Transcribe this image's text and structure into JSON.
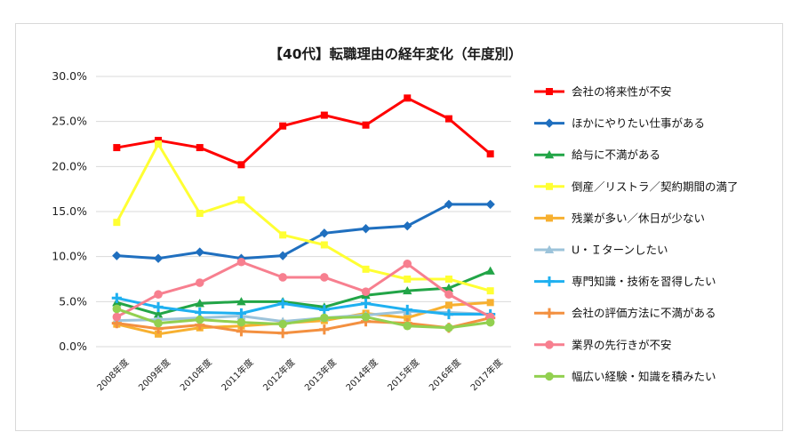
{
  "chart_data": {
    "type": "line",
    "title": "【40代】転職理由の経年変化（年度別）",
    "xlabel": "",
    "ylabel": "",
    "categories": [
      "2008年度",
      "2009年度",
      "2010年度",
      "2011年度",
      "2012年度",
      "2013年度",
      "2014年度",
      "2015年度",
      "2016年度",
      "2017年度"
    ],
    "ylim": [
      0,
      30
    ],
    "yticks": [
      0,
      5,
      10,
      15,
      20,
      25,
      30
    ],
    "ytick_labels": [
      "0.0%",
      "5.0%",
      "10.0%",
      "15.0%",
      "20.0%",
      "25.0%",
      "30.0%"
    ],
    "grid": true,
    "legend_position": "right",
    "series": [
      {
        "name": "会社の将来性が不安",
        "color": "#ff0000",
        "marker": "square",
        "values": [
          22.1,
          22.9,
          22.1,
          20.2,
          24.5,
          25.7,
          24.6,
          27.6,
          25.3,
          21.4
        ]
      },
      {
        "name": "ほかにやりたい仕事がある",
        "color": "#1f6fbf",
        "marker": "diamond",
        "values": [
          10.1,
          9.8,
          10.5,
          9.8,
          10.1,
          12.6,
          13.1,
          13.4,
          15.8,
          15.8
        ]
      },
      {
        "name": "給与に不満がある",
        "color": "#22a547",
        "marker": "triangle",
        "values": [
          4.9,
          3.6,
          4.8,
          5.0,
          5.0,
          4.4,
          5.7,
          6.2,
          6.5,
          8.4
        ]
      },
      {
        "name": "倒産／リストラ／契約期間の満了",
        "color": "#ffff33",
        "marker": "square",
        "values": [
          13.8,
          22.5,
          14.8,
          16.3,
          12.4,
          11.3,
          8.6,
          7.5,
          7.5,
          6.2
        ]
      },
      {
        "name": "残業が多い／休日が少ない",
        "color": "#f7b030",
        "marker": "square",
        "values": [
          2.5,
          1.4,
          2.1,
          2.3,
          2.6,
          2.9,
          3.7,
          3.2,
          4.6,
          4.9
        ]
      },
      {
        "name": "U・Ｉターンしたい",
        "color": "#9cc3da",
        "marker": "triangle",
        "values": [
          2.9,
          3.0,
          3.2,
          3.4,
          2.8,
          3.2,
          3.5,
          3.9,
          3.8,
          3.6
        ]
      },
      {
        "name": "専門知識・技術を習得したい",
        "color": "#1fb0f0",
        "marker": "star",
        "values": [
          5.4,
          4.4,
          3.8,
          3.7,
          4.8,
          4.1,
          4.8,
          4.1,
          3.6,
          3.6
        ]
      },
      {
        "name": "会社の評価方法に不満がある",
        "color": "#f39040",
        "marker": "star",
        "values": [
          2.6,
          2.0,
          2.4,
          1.7,
          1.5,
          1.9,
          2.8,
          2.6,
          2.1,
          3.2
        ]
      },
      {
        "name": "業界の先行きが不安",
        "color": "#f77f8f",
        "marker": "circle",
        "values": [
          3.3,
          5.8,
          7.1,
          9.4,
          7.7,
          7.7,
          6.1,
          9.2,
          5.8,
          3.3
        ]
      },
      {
        "name": "幅広い経験・知識を積みたい",
        "color": "#92d050",
        "marker": "circle",
        "values": [
          4.2,
          2.6,
          3.0,
          2.7,
          2.5,
          3.2,
          3.3,
          2.3,
          2.1,
          2.7
        ]
      }
    ]
  }
}
